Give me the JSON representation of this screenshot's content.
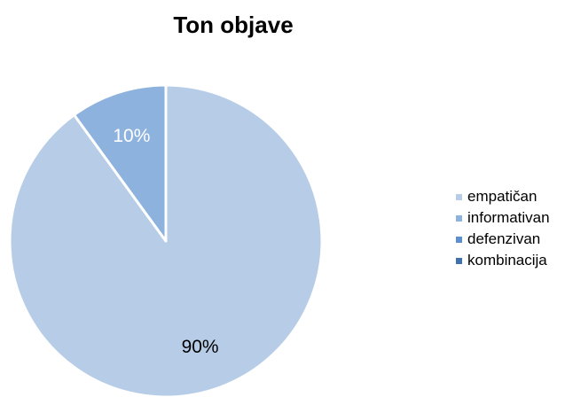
{
  "chart_data": {
    "type": "pie",
    "title": "Ton objave",
    "categories": [
      "empatičan",
      "informativan",
      "defenzivan",
      "kombinacija"
    ],
    "values": [
      90,
      10,
      0,
      0
    ],
    "data_labels": [
      "90%",
      "10%",
      "",
      ""
    ],
    "colors": [
      "#b7cde7",
      "#8eb2de",
      "#5b8fcf",
      "#3f72ad"
    ],
    "legend_position": "right"
  }
}
